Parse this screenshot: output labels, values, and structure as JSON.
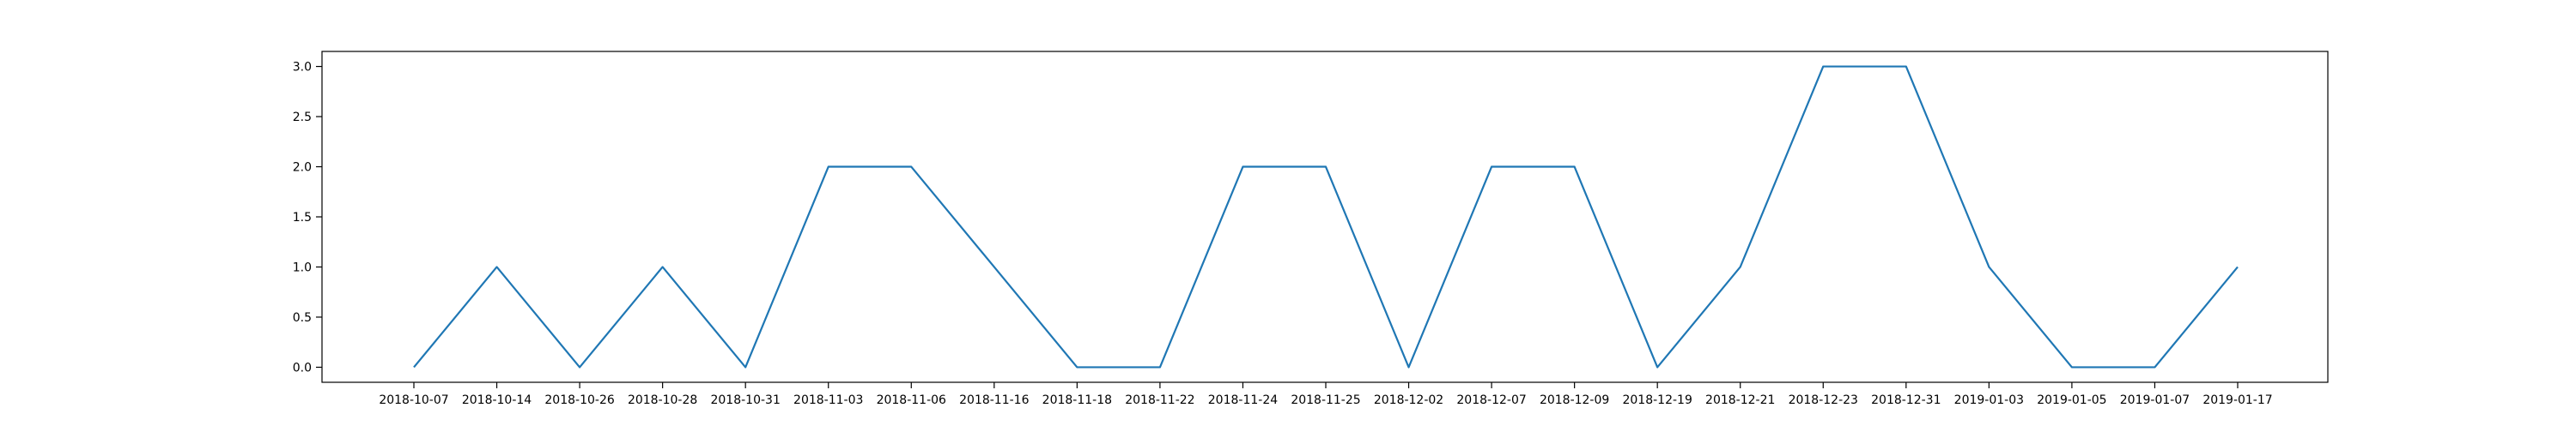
{
  "chart_data": {
    "type": "line",
    "x": [
      "2018-10-07",
      "2018-10-14",
      "2018-10-26",
      "2018-10-28",
      "2018-10-31",
      "2018-11-03",
      "2018-11-06",
      "2018-11-16",
      "2018-11-18",
      "2018-11-22",
      "2018-11-24",
      "2018-11-25",
      "2018-12-02",
      "2018-12-07",
      "2018-12-09",
      "2018-12-19",
      "2018-12-21",
      "2018-12-23",
      "2018-12-31",
      "2019-01-03",
      "2019-01-05",
      "2019-01-07",
      "2019-01-17"
    ],
    "series": [
      {
        "values": [
          0,
          1,
          0,
          1,
          0,
          2,
          2,
          1,
          0,
          0,
          2,
          2,
          0,
          2,
          2,
          0,
          1,
          3,
          3,
          1,
          0,
          0,
          1
        ],
        "color": "#1f77b4"
      }
    ],
    "title": "",
    "xlabel": "",
    "ylabel": "",
    "ylim": [
      -0.15,
      3.15
    ],
    "yticks": [
      "0.0",
      "0.5",
      "1.0",
      "1.5",
      "2.0",
      "2.5",
      "3.0"
    ],
    "grid": false
  }
}
